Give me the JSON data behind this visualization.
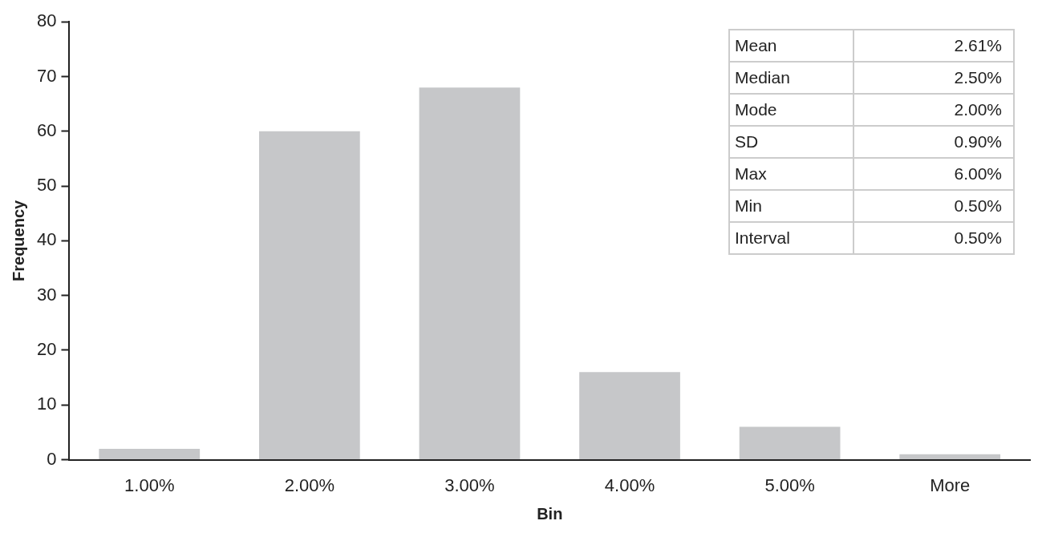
{
  "chart_data": {
    "type": "bar",
    "categories": [
      "1.00%",
      "2.00%",
      "3.00%",
      "4.00%",
      "5.00%",
      "More"
    ],
    "values": [
      2,
      60,
      68,
      16,
      6,
      1
    ],
    "color": "#c6c7c9",
    "xlabel": "Bin",
    "ylabel": "Frequency",
    "ylim": [
      0,
      80
    ],
    "yticks": [
      0,
      10,
      20,
      30,
      40,
      50,
      60,
      70,
      80
    ],
    "grid": false,
    "legend": false,
    "annotations": [
      "Mean",
      "2.61%",
      "Median",
      "2.50%",
      "Mode",
      "2.00%",
      "SD",
      "0.90%",
      "Max",
      "6.00%",
      "Min",
      "0.50%",
      "Interval",
      "0.50%"
    ]
  }
}
